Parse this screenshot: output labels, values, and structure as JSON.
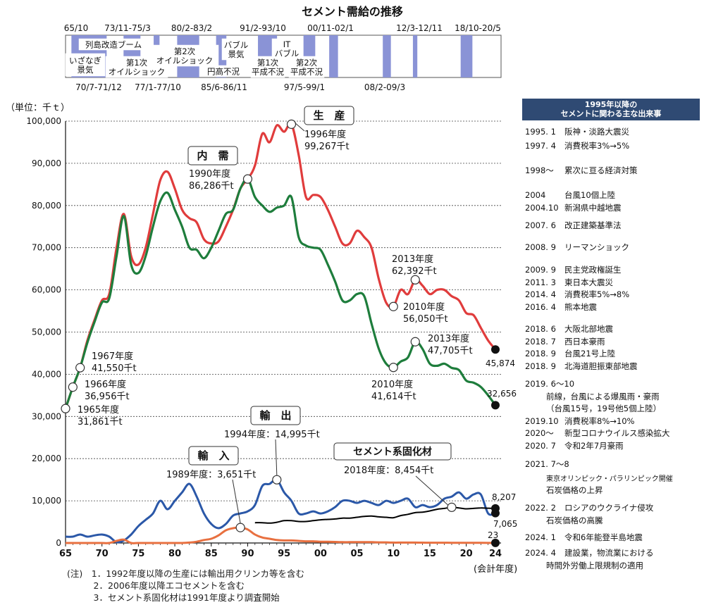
{
  "title": "セメント需給の推移",
  "unit_label": "（単位：千ｔ）",
  "x_axis_label": "(会計年度)",
  "chart_data": {
    "type": "line",
    "title": "セメント需給の推移",
    "ylabel": "（単位：千ｔ）",
    "xlabel": "(会計年度)",
    "ylim": [
      0,
      100000
    ],
    "xlim": [
      1965,
      2024
    ],
    "y_ticks": [
      "0",
      "10,000",
      "20,000",
      "30,000",
      "40,000",
      "50,000",
      "60,000",
      "70,000",
      "80,000",
      "90,000",
      "100,000"
    ],
    "x_ticks": [
      "65",
      "70",
      "75",
      "80",
      "85",
      "90",
      "95",
      "00",
      "05",
      "10",
      "15",
      "20",
      "24"
    ],
    "series": [
      {
        "name": "生　産",
        "color": "#e03c3c",
        "x": [
          1965,
          1966,
          1967,
          1968,
          1969,
          1970,
          1971,
          1972,
          1973,
          1974,
          1975,
          1976,
          1977,
          1978,
          1979,
          1980,
          1981,
          1982,
          1983,
          1984,
          1985,
          1986,
          1987,
          1988,
          1989,
          1990,
          1991,
          1992,
          1993,
          1994,
          1995,
          1996,
          1997,
          1998,
          1999,
          2000,
          2001,
          2002,
          2003,
          2004,
          2005,
          2006,
          2007,
          2008,
          2009,
          2010,
          2011,
          2012,
          2013,
          2014,
          2015,
          2016,
          2017,
          2018,
          2019,
          2020,
          2021,
          2022,
          2023,
          2024
        ],
        "y": [
          31861,
          36956,
          41550,
          48000,
          53000,
          57500,
          59000,
          70000,
          78000,
          68000,
          66000,
          70000,
          78000,
          86000,
          88000,
          84000,
          79000,
          77000,
          76000,
          72000,
          71000,
          71500,
          75000,
          79000,
          84000,
          86286,
          89500,
          97000,
          95000,
          99000,
          97500,
          99267,
          92000,
          82000,
          82500,
          82000,
          79000,
          75000,
          71000,
          71000,
          74000,
          72500,
          70000,
          62500,
          57000,
          56050,
          60000,
          59000,
          62392,
          61000,
          59000,
          60000,
          60000,
          58500,
          57500,
          54500,
          54000,
          51000,
          48000,
          45874
        ]
      },
      {
        "name": "内　需",
        "color": "#1e7d3c",
        "x": [
          1965,
          1966,
          1967,
          1968,
          1969,
          1970,
          1971,
          1972,
          1973,
          1974,
          1975,
          1976,
          1977,
          1978,
          1979,
          1980,
          1981,
          1982,
          1983,
          1984,
          1985,
          1986,
          1987,
          1988,
          1989,
          1990,
          1991,
          1992,
          1993,
          1994,
          1995,
          1996,
          1997,
          1998,
          1999,
          2000,
          2001,
          2002,
          2003,
          2004,
          2005,
          2006,
          2007,
          2008,
          2009,
          2010,
          2011,
          2012,
          2013,
          2014,
          2015,
          2016,
          2017,
          2018,
          2019,
          2020,
          2021,
          2022,
          2023,
          2024
        ],
        "y": [
          31861,
          36956,
          41550,
          47500,
          52500,
          57000,
          58000,
          68000,
          77500,
          66000,
          64000,
          68000,
          75000,
          81000,
          83000,
          79000,
          75000,
          70000,
          69500,
          67500,
          70000,
          74000,
          78000,
          79000,
          84000,
          86286,
          82000,
          80000,
          78500,
          79500,
          80000,
          82000,
          72500,
          70500,
          70000,
          69500,
          66000,
          62000,
          57500,
          57500,
          59000,
          58500,
          52000,
          46000,
          42500,
          41614,
          43000,
          44000,
          47705,
          46000,
          42500,
          42000,
          42500,
          41500,
          41000,
          38500,
          38000,
          37000,
          35000,
          32656
        ]
      },
      {
        "name": "輸　出",
        "color": "#2b58a8",
        "x": [
          1965,
          1966,
          1967,
          1968,
          1969,
          1970,
          1971,
          1972,
          1973,
          1974,
          1975,
          1976,
          1977,
          1978,
          1979,
          1980,
          1981,
          1982,
          1983,
          1984,
          1985,
          1986,
          1987,
          1988,
          1989,
          1990,
          1991,
          1992,
          1993,
          1994,
          1995,
          1996,
          1997,
          1998,
          1999,
          2000,
          2001,
          2002,
          2003,
          2004,
          2005,
          2006,
          2007,
          2008,
          2009,
          2010,
          2011,
          2012,
          2013,
          2014,
          2015,
          2016,
          2017,
          2018,
          2019,
          2020,
          2021,
          2022,
          2023,
          2024
        ],
        "y": [
          1500,
          1500,
          2000,
          1500,
          1800,
          2000,
          1500,
          200,
          600,
          2000,
          4000,
          5500,
          7000,
          10000,
          8000,
          10000,
          12000,
          14000,
          11000,
          7000,
          4500,
          3500,
          4500,
          6500,
          7000,
          7500,
          9000,
          13500,
          14000,
          14995,
          12000,
          10000,
          7000,
          7000,
          7500,
          7000,
          7500,
          8500,
          10000,
          10000,
          9500,
          10000,
          9500,
          9000,
          10000,
          9500,
          10000,
          10500,
          8500,
          9000,
          8500,
          9000,
          10500,
          11000,
          12000,
          10500,
          11500,
          11500,
          7000,
          7065
        ]
      },
      {
        "name": "輸　入",
        "color": "#e87040",
        "x": [
          1965,
          1966,
          1967,
          1968,
          1969,
          1970,
          1971,
          1972,
          1973,
          1974,
          1975,
          1976,
          1977,
          1978,
          1979,
          1980,
          1981,
          1982,
          1983,
          1984,
          1985,
          1986,
          1987,
          1988,
          1989,
          1990,
          1991,
          1992,
          1993,
          1994,
          1995,
          1996,
          1997,
          1998,
          1999,
          2000,
          2001,
          2002,
          2003,
          2004,
          2005,
          2006,
          2007,
          2008,
          2009,
          2010,
          2011,
          2012,
          2013,
          2014,
          2015,
          2016,
          2017,
          2018,
          2019,
          2020,
          2021,
          2022,
          2023,
          2024
        ],
        "y": [
          0,
          0,
          0,
          0,
          0,
          0,
          0,
          500,
          800,
          0,
          0,
          0,
          0,
          0,
          0,
          0,
          0,
          100,
          300,
          700,
          1000,
          1800,
          3000,
          3500,
          3651,
          3200,
          2000,
          1300,
          1000,
          700,
          600,
          600,
          500,
          400,
          400,
          300,
          300,
          250,
          200,
          200,
          200,
          200,
          200,
          150,
          150,
          100,
          100,
          100,
          100,
          80,
          70,
          60,
          60,
          50,
          50,
          40,
          30,
          30,
          25,
          23
        ]
      },
      {
        "name": "セメント系固化材",
        "color": "#000000",
        "x": [
          1991,
          1992,
          1993,
          1994,
          1995,
          1996,
          1997,
          1998,
          1999,
          2000,
          2001,
          2002,
          2003,
          2004,
          2005,
          2006,
          2007,
          2008,
          2009,
          2010,
          2011,
          2012,
          2013,
          2014,
          2015,
          2016,
          2017,
          2018,
          2019,
          2020,
          2021,
          2022,
          2023,
          2024
        ],
        "y": [
          4800,
          4800,
          4700,
          4900,
          5300,
          5300,
          5100,
          5100,
          5300,
          5500,
          5600,
          5700,
          5900,
          5900,
          6100,
          6300,
          6400,
          6200,
          6100,
          6000,
          6500,
          6800,
          7200,
          7300,
          7600,
          8000,
          8200,
          8454,
          8300,
          8100,
          8200,
          8300,
          8250,
          8207
        ]
      }
    ],
    "annotations": {
      "prod_1965": [
        "1965年度",
        "31,861千t"
      ],
      "prod_1966": [
        "1966年度",
        "36,956千t"
      ],
      "prod_1967": [
        "1967年度",
        "41,550千t"
      ],
      "demand_1990": [
        "1990年度",
        "86,286千t"
      ],
      "prod_1996": [
        "1996年度",
        "99,267千t"
      ],
      "prod_2013": [
        "2013年度",
        "62,392千t"
      ],
      "prod_2010": [
        "2010年度",
        "56,050千t"
      ],
      "demand_2013": [
        "2013年度",
        "47,705千t"
      ],
      "demand_2010": [
        "2010年度",
        "41,614千t"
      ],
      "export_1994": "1994年度：14,995千t",
      "import_1989": "1989年度：3,651千t",
      "solid_2018": "2018年度：8,454千t",
      "end_prod": "45,874",
      "end_demand": "32,656",
      "end_solid": "8,207",
      "end_export": "7,065",
      "end_import": "23"
    }
  },
  "timeline": {
    "bands": [
      {
        "start": 1965.8,
        "end": 1970.6
      },
      {
        "start": 1972.9,
        "end": 1975.2
      },
      {
        "start": 1977.0,
        "end": 1977.8
      },
      {
        "start": 1980.2,
        "end": 1983.2
      },
      {
        "start": 1985.5,
        "end": 1986.9
      },
      {
        "start": 1991.2,
        "end": 1993.8
      },
      {
        "start": 1997.4,
        "end": 1999.0
      },
      {
        "start": 2000.9,
        "end": 2002.1
      },
      {
        "start": 2008.2,
        "end": 2009.3
      },
      {
        "start": 2012.3,
        "end": 2012.9
      },
      {
        "start": 2018.8,
        "end": 2020.4
      }
    ],
    "top_labels": [
      "65/10",
      "73/11-75/3",
      "80/2-83/2",
      "91/2-93/10",
      "00/11-02/1",
      "12/3-12/11",
      "18/10-20/5"
    ],
    "bottom_labels": [
      "70/7-71/12",
      "77/1-77/10",
      "85/6-86/11",
      "97/5-99/1",
      "08/2-09/3"
    ],
    "boxes": [
      {
        "lines": [
          "いざなぎ",
          "景気"
        ]
      },
      {
        "lines": [
          "列島改造ブーム"
        ]
      },
      {
        "lines": [
          "第1次",
          "オイルショック"
        ]
      },
      {
        "lines": [
          "第2次",
          "オイルショック"
        ]
      },
      {
        "lines": [
          "円高不況"
        ]
      },
      {
        "lines": [
          "バブル",
          "景気"
        ]
      },
      {
        "lines": [
          "第1次",
          "平成不況"
        ]
      },
      {
        "lines": [
          "IT",
          "バブル"
        ]
      },
      {
        "lines": [
          "第2次",
          "平成不況"
        ]
      }
    ]
  },
  "legend_boxes": {
    "production": "生　産",
    "demand": "内　需",
    "export": "輸　出",
    "import": "輸　入",
    "solidifier": "セメント系固化材"
  },
  "events": {
    "header": [
      "1995年以降の",
      "セメントに関わる主な出来事"
    ],
    "items": [
      {
        "date": "1995. 1",
        "text": "阪神・淡路大震災"
      },
      {
        "date": "1997. 4",
        "text": "消費税率3%→5%"
      },
      {
        "date": "1998～",
        "text": "累次に亘る経済対策"
      },
      {
        "date": "2004",
        "text": "台風10個上陸"
      },
      {
        "date": "2004.10",
        "text": "新潟県中越地震"
      },
      {
        "date": "2007. 6",
        "text": "改正建築基準法"
      },
      {
        "date": "2008. 9",
        "text": "リーマンショック"
      },
      {
        "date": "2009. 9",
        "text": "民主党政権誕生"
      },
      {
        "date": "2011. 3",
        "text": "東日本大震災"
      },
      {
        "date": "2014. 4",
        "text": "消費税率5%→8%"
      },
      {
        "date": "2016. 4",
        "text": "熊本地震"
      },
      {
        "date": "2018. 6",
        "text": "大阪北部地震"
      },
      {
        "date": "2018. 7",
        "text": "西日本豪雨"
      },
      {
        "date": "2018. 9",
        "text": "台風21号上陸"
      },
      {
        "date": "2018. 9",
        "text": "北海道胆振東部地震"
      },
      {
        "date": "2019. 6～10",
        "text": ""
      },
      {
        "date": "",
        "text": "前線，台風による爆風雨・豪雨"
      },
      {
        "date": "",
        "text": "（台風15号，19号他5個上陸）"
      },
      {
        "date": "2019.10",
        "text": "消費税率8%→10%"
      },
      {
        "date": "2020～",
        "text": "新型コロナウイルス感染拡大"
      },
      {
        "date": "2020. 7",
        "text": "令和2年7月豪雨"
      },
      {
        "date": "2021. 7～8",
        "text": ""
      },
      {
        "date": "",
        "text": "東京オリンピック・パラリンピック開催"
      },
      {
        "date": "",
        "text": "石炭価格の上昇"
      },
      {
        "date": "2022. 2",
        "text": "ロシアのウクライナ侵攻"
      },
      {
        "date": "",
        "text": "石炭価格の高騰"
      },
      {
        "date": "2024. 1",
        "text": "令和6年能登半島地震"
      },
      {
        "date": "2024. 4",
        "text": "建設業，物流業における"
      },
      {
        "date": "",
        "text": "時間外労働上限規制の適用"
      }
    ]
  },
  "notes": [
    "(注)　1．1992年度以降の生産には輸出用クリンカ等を含む",
    "　　　2．2006年度以降エコセメントを含む",
    "　　　3．セメント系固化材は1991年度より調査開始"
  ]
}
